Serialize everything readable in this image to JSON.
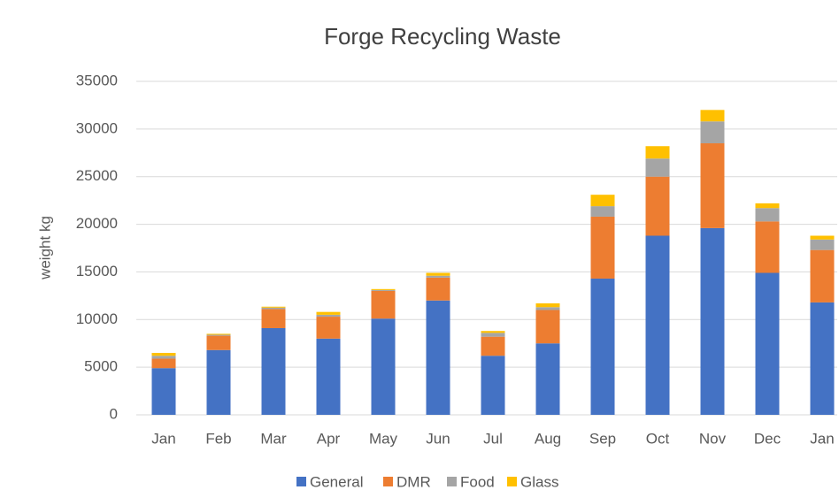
{
  "chart_data": {
    "type": "stacked_bar",
    "title": "Forge Recycling Waste",
    "y_label": "weight kg",
    "categories": [
      "Jan",
      "Feb",
      "Mar",
      "Apr",
      "May",
      "Jun",
      "Jul",
      "Aug",
      "Sep",
      "Oct",
      "Nov",
      "Dec",
      "Jan"
    ],
    "series": [
      {
        "name": "General",
        "color": "#4472c4",
        "values": [
          4900,
          6800,
          9100,
          8000,
          10100,
          12000,
          6200,
          7500,
          14300,
          18800,
          19600,
          14900,
          11800
        ]
      },
      {
        "name": "DMR",
        "color": "#ed7d31",
        "values": [
          1000,
          1500,
          2000,
          2300,
          2900,
          2400,
          2000,
          3500,
          6500,
          6200,
          8900,
          5400,
          5500
        ]
      },
      {
        "name": "Food",
        "color": "#a5a5a5",
        "values": [
          300,
          100,
          150,
          200,
          100,
          200,
          400,
          300,
          1100,
          1900,
          2300,
          1400,
          1100
        ]
      },
      {
        "name": "Glass",
        "color": "#ffc000",
        "values": [
          300,
          100,
          100,
          300,
          100,
          300,
          200,
          400,
          1200,
          1300,
          1200,
          500,
          400
        ]
      }
    ],
    "ylim": [
      0,
      35000
    ],
    "yticks": [
      0,
      5000,
      10000,
      15000,
      20000,
      25000,
      30000,
      35000
    ],
    "grid": true,
    "legend": "bottom"
  }
}
